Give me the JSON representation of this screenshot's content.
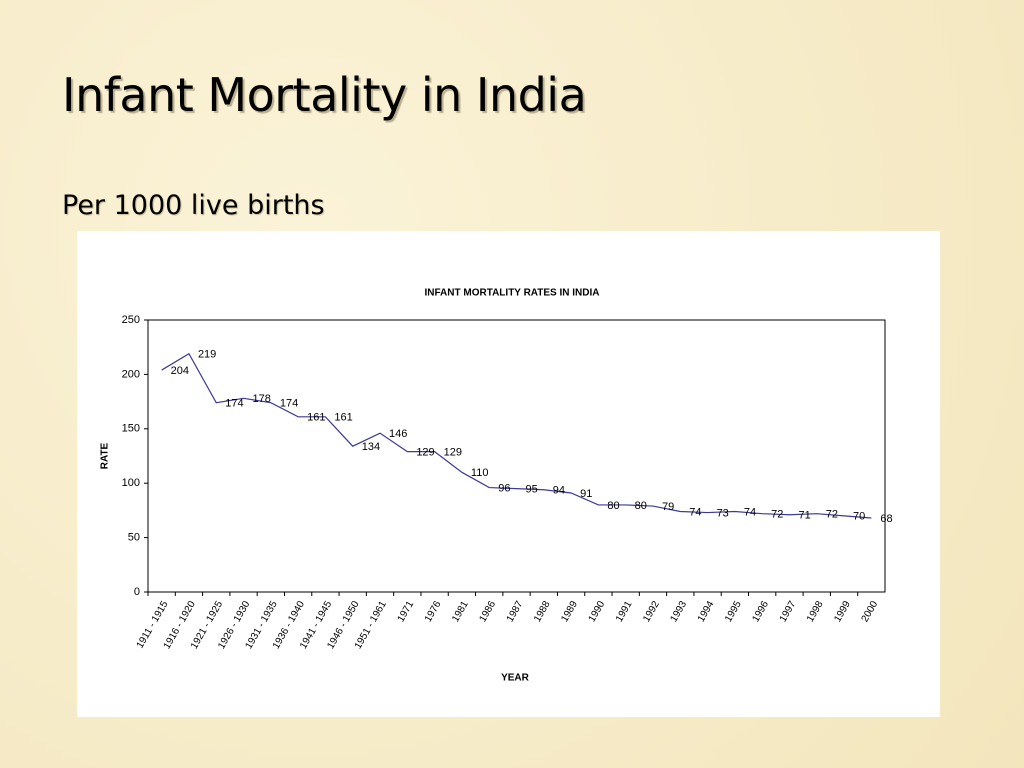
{
  "slide": {
    "title": "Infant Mortality in India",
    "subtitle": "Per 1000 live births"
  },
  "chart_data": {
    "type": "line",
    "title": "INFANT MORTALITY RATES IN INDIA",
    "xlabel": "YEAR",
    "ylabel": "RATE",
    "categories": [
      "1911 - 1915",
      "1916 - 1920",
      "1921 - 1925",
      "1926 - 1930",
      "1931 - 1935",
      "1936 - 1940",
      "1941 - 1945",
      "1946 - 1950",
      "1951 - 1961",
      "1971",
      "1976",
      "1981",
      "1986",
      "1987",
      "1988",
      "1989",
      "1990",
      "1991",
      "1992",
      "1993",
      "1994",
      "1995",
      "1996",
      "1997",
      "1998",
      "1999",
      "2000"
    ],
    "series": [
      {
        "name": "RATE",
        "color": "#3a3a9a",
        "values": [
          204,
          219,
          174,
          178,
          174,
          161,
          161,
          134,
          146,
          129,
          129,
          110,
          96,
          95,
          94,
          91,
          80,
          80,
          79,
          74,
          73,
          74,
          72,
          71,
          72,
          70,
          68
        ]
      }
    ],
    "ylim": [
      0,
      250
    ],
    "yticks": [
      0,
      50,
      100,
      150,
      200,
      250
    ],
    "grid": false
  }
}
